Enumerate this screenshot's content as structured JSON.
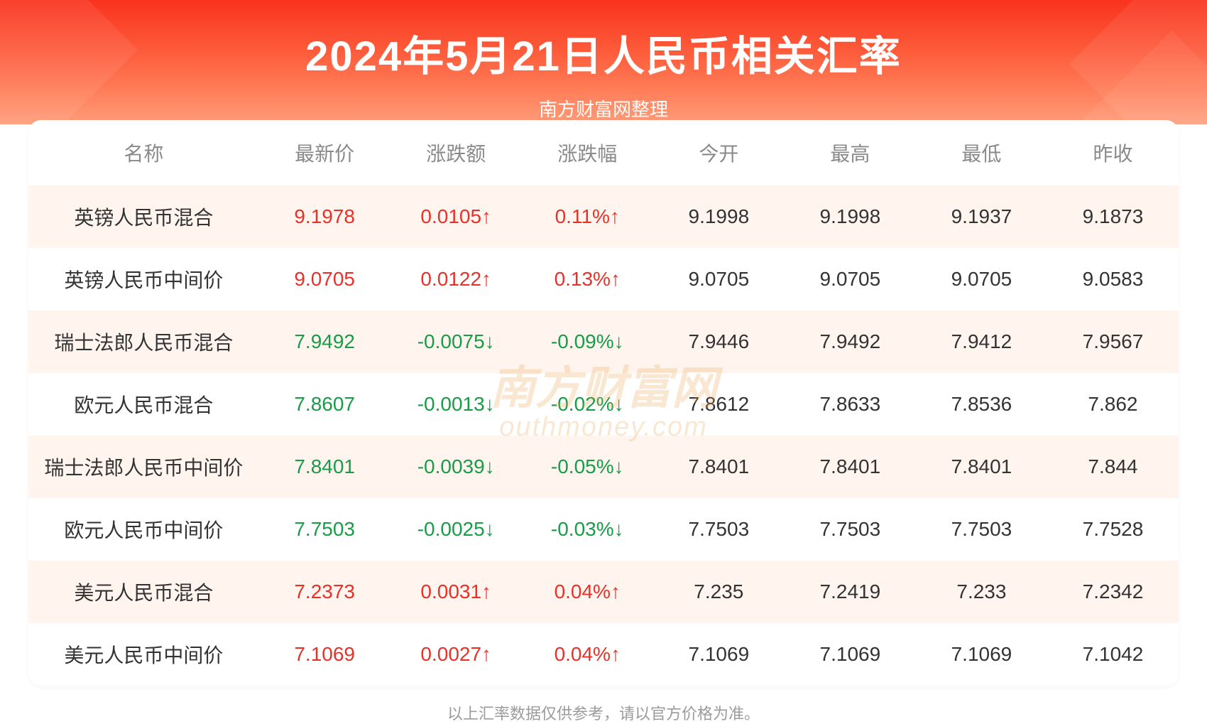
{
  "header": {
    "title": "2024年5月21日人民币相关汇率",
    "subtitle": "南方财富网整理"
  },
  "table": {
    "columns": [
      "名称",
      "最新价",
      "涨跌额",
      "涨跌幅",
      "今开",
      "最高",
      "最低",
      "昨收"
    ],
    "colors": {
      "up": "#e83129",
      "down": "#179c47",
      "neutral": "#333333",
      "header_text": "#8a8a8a",
      "row_alt_bg": "#fff5ee",
      "row_bg": "#ffffff"
    },
    "rows": [
      {
        "name": "英镑人民币混合",
        "latest": "9.1978",
        "change": "0.0105↑",
        "pct": "0.11%↑",
        "open": "9.1998",
        "high": "9.1998",
        "low": "9.1937",
        "prev": "9.1873",
        "dir": "up"
      },
      {
        "name": "英镑人民币中间价",
        "latest": "9.0705",
        "change": "0.0122↑",
        "pct": "0.13%↑",
        "open": "9.0705",
        "high": "9.0705",
        "low": "9.0705",
        "prev": "9.0583",
        "dir": "up"
      },
      {
        "name": "瑞士法郎人民币混合",
        "latest": "7.9492",
        "change": "-0.0075↓",
        "pct": "-0.09%↓",
        "open": "7.9446",
        "high": "7.9492",
        "low": "7.9412",
        "prev": "7.9567",
        "dir": "down"
      },
      {
        "name": "欧元人民币混合",
        "latest": "7.8607",
        "change": "-0.0013↓",
        "pct": "-0.02%↓",
        "open": "7.8612",
        "high": "7.8633",
        "low": "7.8536",
        "prev": "7.862",
        "dir": "down"
      },
      {
        "name": "瑞士法郎人民币中间价",
        "latest": "7.8401",
        "change": "-0.0039↓",
        "pct": "-0.05%↓",
        "open": "7.8401",
        "high": "7.8401",
        "low": "7.8401",
        "prev": "7.844",
        "dir": "down"
      },
      {
        "name": "欧元人民币中间价",
        "latest": "7.7503",
        "change": "-0.0025↓",
        "pct": "-0.03%↓",
        "open": "7.7503",
        "high": "7.7503",
        "low": "7.7503",
        "prev": "7.7528",
        "dir": "down"
      },
      {
        "name": "美元人民币混合",
        "latest": "7.2373",
        "change": "0.0031↑",
        "pct": "0.04%↑",
        "open": "7.235",
        "high": "7.2419",
        "low": "7.233",
        "prev": "7.2342",
        "dir": "up"
      },
      {
        "name": "美元人民币中间价",
        "latest": "7.1069",
        "change": "0.0027↑",
        "pct": "0.04%↑",
        "open": "7.1069",
        "high": "7.1069",
        "low": "7.1069",
        "prev": "7.1042",
        "dir": "up"
      }
    ]
  },
  "watermark": {
    "line1": "南方财富网",
    "line2": "outhmoney.com"
  },
  "footer": "以上汇率数据仅供参考，请以官方价格为准。",
  "banner_gradient": [
    "#f9331e",
    "#fd5a3a",
    "#ff7a55",
    "#ff9d7a"
  ]
}
